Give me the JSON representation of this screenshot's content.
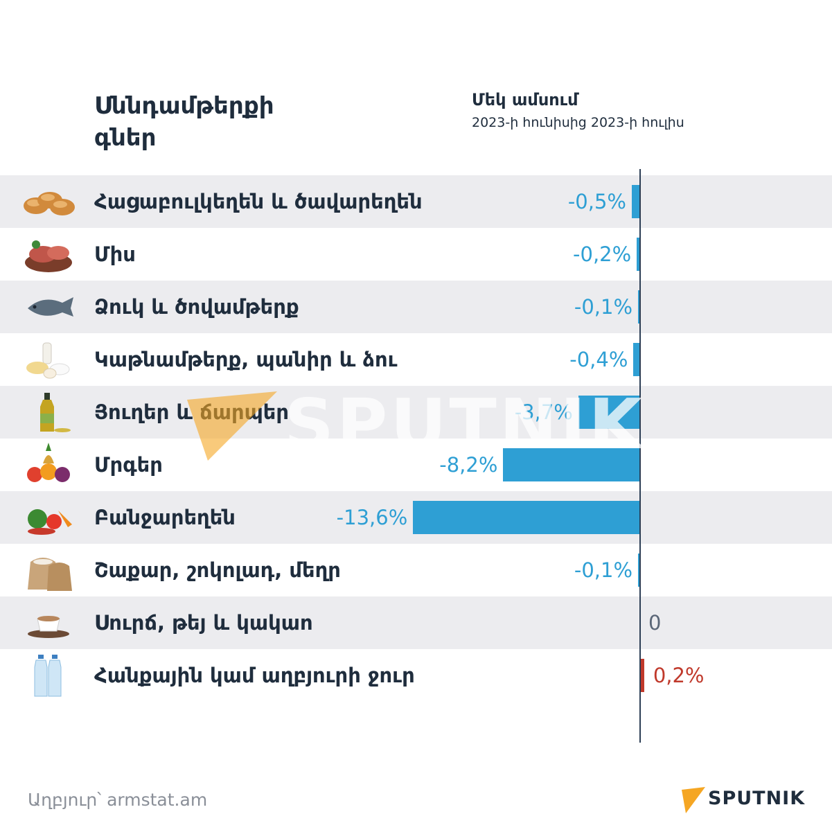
{
  "title": "Սննդամթերքի գներ",
  "period": {
    "title": "Մեկ ամսում",
    "subtitle": "2023-ի հունիսից 2023-ի հուլիս"
  },
  "source": "Աղբյուր՝ armstat.am",
  "brand": "SPUTNIK",
  "watermark": "SPUTNIK",
  "colors": {
    "negative": "#2e9fd4",
    "positive": "#c0392b",
    "zero": "#5a6677",
    "row_shade": "#ececef",
    "text": "#1f2d3d",
    "brand_accent": "#f5a623"
  },
  "chart_data": {
    "type": "bar",
    "orientation": "horizontal",
    "unit": "%",
    "categories": [
      "Հացաբուլկեղեն և ծավարեղեն",
      "Միս",
      "Ձուկ և ծովամթերք",
      "Կաթնամթերք, պանիր և ձու",
      "Յուղեր և ճարպեր",
      "Մրգեր",
      "Բանջարեղեն",
      "Շաքար, շոկոլադ, մեղր",
      "Սուրճ, թեյ և կակաո",
      "Հանքային կամ աղբյուրի ջուր"
    ],
    "values": [
      -0.5,
      -0.2,
      -0.1,
      -0.4,
      -3.7,
      -8.2,
      -13.6,
      -0.1,
      0,
      0.2
    ],
    "value_labels": [
      "-0,5%",
      "-0,2%",
      "-0,1%",
      "-0,4%",
      "-3,7%",
      "-8,2%",
      "-13,6%",
      "-0,1%",
      "0",
      "0,2%"
    ],
    "icons": [
      "bread-icon",
      "meat-icon",
      "fish-icon",
      "dairy-icon",
      "oil-bottle-icon",
      "fruit-icon",
      "vegetables-icon",
      "sugar-sack-icon",
      "coffee-cup-icon",
      "water-bottles-icon"
    ]
  }
}
